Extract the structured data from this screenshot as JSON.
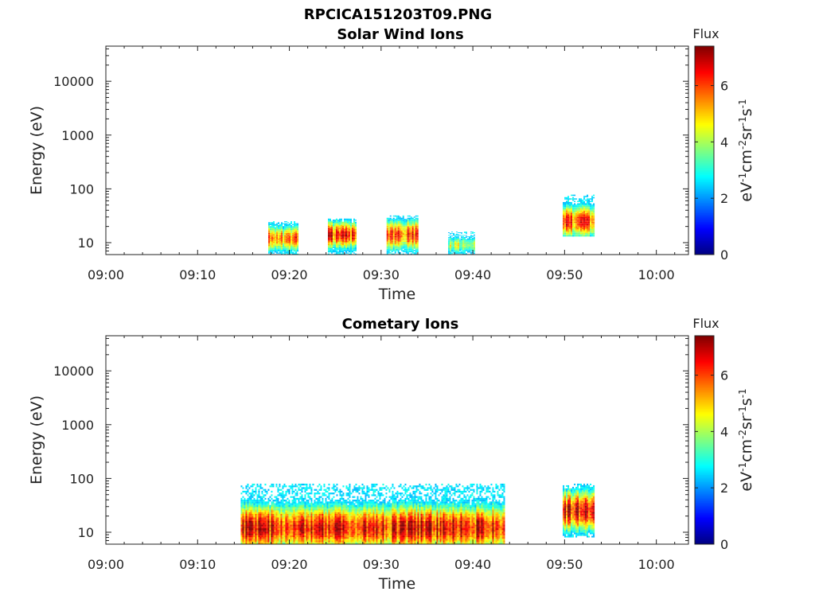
{
  "figure": {
    "title": "RPCICA151203T09.PNG"
  },
  "chart_data": [
    {
      "type": "heatmap",
      "title": "Solar Wind Ions",
      "xlabel": "Time",
      "ylabel": "Energy (eV)",
      "x_ticks": [
        "09:00",
        "09:10",
        "09:20",
        "09:30",
        "09:40",
        "09:50",
        "10:00"
      ],
      "x_range_minutes": [
        0,
        63.5
      ],
      "y_scale": "log",
      "y_ticks": [
        "10",
        "100",
        "1000",
        "10000"
      ],
      "y_range": [
        6,
        45000
      ],
      "colorbar": {
        "label": "Flux",
        "unit_label": "eV-1cm-2sr-1s-1",
        "range": [
          0,
          7.4
        ],
        "ticks": [
          "0",
          "2",
          "4",
          "6"
        ]
      },
      "blobs": [
        {
          "start_min": 17.7,
          "end_min": 20.9,
          "e_low": 6,
          "e_high": 25,
          "e_peak": 12,
          "intensity": 6.0
        },
        {
          "start_min": 24.2,
          "end_min": 27.3,
          "e_low": 6,
          "e_high": 28,
          "e_peak": 14,
          "intensity": 6.6
        },
        {
          "start_min": 30.6,
          "end_min": 33.9,
          "e_low": 6,
          "e_high": 32,
          "e_peak": 14,
          "intensity": 6.3
        },
        {
          "start_min": 37.3,
          "end_min": 40.1,
          "e_low": 6,
          "e_high": 16,
          "e_peak": 9,
          "intensity": 4.4
        },
        {
          "start_min": 49.8,
          "end_min": 53.2,
          "e_low": 13,
          "e_high": 78,
          "e_peak": 25,
          "intensity": 6.4
        }
      ]
    },
    {
      "type": "heatmap",
      "title": "Cometary Ions",
      "xlabel": "Time",
      "ylabel": "Energy (eV)",
      "x_ticks": [
        "09:00",
        "09:10",
        "09:20",
        "09:30",
        "09:40",
        "09:50",
        "10:00"
      ],
      "x_range_minutes": [
        0,
        63.5
      ],
      "y_scale": "log",
      "y_ticks": [
        "10",
        "100",
        "1000",
        "10000"
      ],
      "y_range": [
        6,
        45000
      ],
      "colorbar": {
        "label": "Flux",
        "unit_label": "eV-1cm-2sr-1s-1",
        "range": [
          0,
          7.4
        ],
        "ticks": [
          "0",
          "2",
          "4",
          "6"
        ]
      },
      "blobs": [
        {
          "start_min": 14.7,
          "end_min": 43.5,
          "e_low": 6,
          "e_high": 80,
          "e_peak": 12,
          "intensity": 7.0
        },
        {
          "start_min": 49.8,
          "end_min": 53.2,
          "e_low": 8,
          "e_high": 80,
          "e_peak": 25,
          "intensity": 7.1
        }
      ]
    }
  ]
}
